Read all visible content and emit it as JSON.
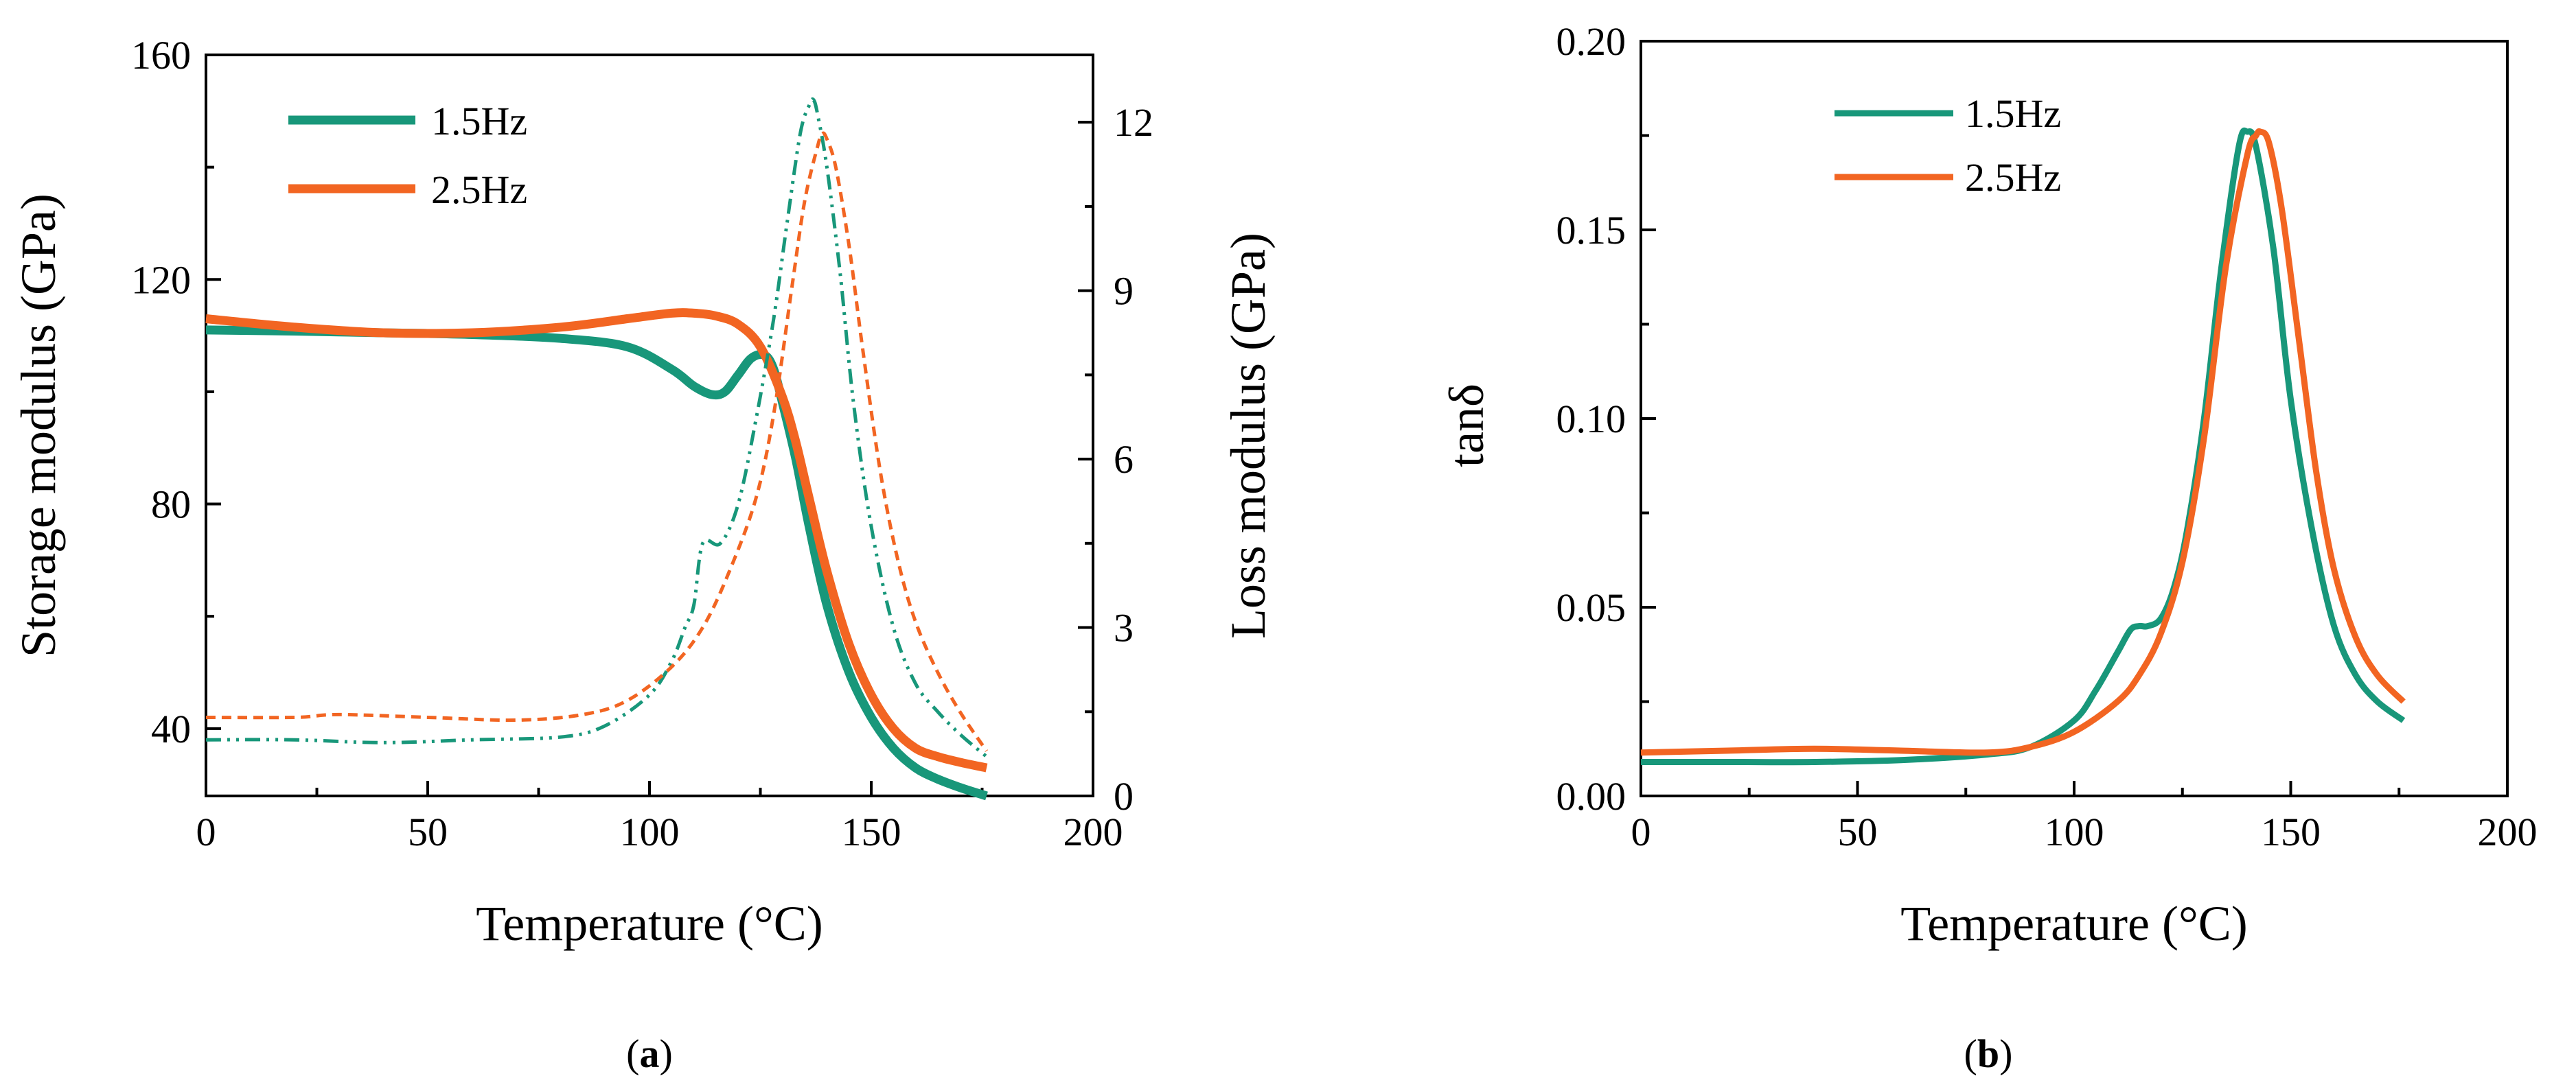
{
  "colors": {
    "green": "#18977A",
    "orange": "#F26522",
    "axis": "#000000"
  },
  "charts": [
    {
      "id": "a",
      "type": "line",
      "caption": {
        "open": "(",
        "label": "a",
        "close": ")"
      },
      "xlabel": "Temperature (°C)",
      "ylabel": "Storage modulus (GPa)",
      "y2label": "Loss modulus (GPa)",
      "xlim": [
        0,
        200
      ],
      "ylim": [
        28,
        160
      ],
      "y2lim": [
        0,
        13.2
      ],
      "xticks": [
        0,
        50,
        100,
        150,
        200
      ],
      "yticks": [
        40,
        80,
        120,
        160
      ],
      "y2ticks": [
        0,
        3,
        6,
        9,
        12
      ],
      "legend": [
        {
          "label": "1.5Hz",
          "color": "#18977A"
        },
        {
          "label": "2.5Hz",
          "color": "#F26522"
        }
      ],
      "series": [
        {
          "name": "1.5Hz storage",
          "color": "#18977A",
          "axis": "left",
          "style": "solid",
          "x": [
            0,
            20,
            40,
            60,
            80,
            95,
            105,
            110,
            114,
            117,
            120,
            123,
            126,
            128,
            130,
            133,
            136,
            140,
            145,
            150,
            155,
            160,
            165,
            170,
            176
          ],
          "y": [
            111,
            110.8,
            110.5,
            110.2,
            109.5,
            108,
            104,
            101,
            99.5,
            100,
            103,
            106,
            106.5,
            104,
            98,
            88,
            76,
            62,
            50,
            42,
            36.5,
            33,
            31,
            29.5,
            28
          ]
        },
        {
          "name": "2.5Hz storage",
          "color": "#F26522",
          "axis": "left",
          "style": "solid",
          "x": [
            0,
            20,
            40,
            60,
            80,
            95,
            105,
            110,
            115,
            120,
            125,
            130,
            133,
            136,
            140,
            145,
            150,
            155,
            160,
            165,
            170,
            176
          ],
          "y": [
            113,
            111.5,
            110.5,
            110.5,
            111.5,
            113,
            114,
            114,
            113.5,
            112,
            108,
            99,
            91,
            81,
            68,
            55,
            46,
            40,
            36.5,
            35,
            34,
            33
          ]
        },
        {
          "name": "1.5Hz loss",
          "color": "#18977A",
          "axis": "right",
          "style": "dashdotdot",
          "x": [
            0,
            20,
            40,
            60,
            80,
            90,
            100,
            105,
            108,
            110,
            112,
            116,
            120,
            124,
            128,
            131,
            134,
            136,
            137,
            138,
            140,
            143,
            146,
            150,
            155,
            160,
            165,
            170,
            176
          ],
          "y": [
            1,
            1,
            0.95,
            1,
            1.05,
            1.25,
            1.8,
            2.4,
            3.0,
            3.4,
            4.5,
            4.5,
            5.2,
            6.7,
            8.5,
            10.2,
            11.8,
            12.3,
            12.4,
            12.1,
            11.2,
            9.3,
            7.0,
            4.8,
            3.0,
            2.0,
            1.5,
            1.1,
            0.7
          ]
        },
        {
          "name": "2.5Hz loss",
          "color": "#F26522",
          "axis": "right",
          "style": "dashed",
          "x": [
            0,
            20,
            30,
            50,
            70,
            85,
            95,
            105,
            112,
            118,
            124,
            128,
            132,
            135,
            138,
            139,
            140,
            142,
            145,
            148,
            152,
            156,
            160,
            165,
            170,
            176
          ],
          "y": [
            1.4,
            1.4,
            1.45,
            1.4,
            1.35,
            1.45,
            1.7,
            2.3,
            3.0,
            4.0,
            5.3,
            6.8,
            9.0,
            10.6,
            11.6,
            11.8,
            11.7,
            11.2,
            9.8,
            8.0,
            5.8,
            4.2,
            3.1,
            2.2,
            1.5,
            0.8
          ]
        }
      ]
    },
    {
      "id": "b",
      "type": "line",
      "caption": {
        "open": "(",
        "label": "b",
        "close": ")"
      },
      "xlabel": "Temperature (°C)",
      "ylabel": "tanδ",
      "xlim": [
        0,
        200
      ],
      "ylim": [
        0,
        0.2
      ],
      "xticks": [
        0,
        50,
        100,
        150,
        200
      ],
      "yticks": [
        0.0,
        0.05,
        0.1,
        0.15,
        0.2
      ],
      "ytick_labels": [
        "0.00",
        "0.05",
        "0.10",
        "0.15",
        "0.20"
      ],
      "legend": [
        {
          "label": "1.5Hz",
          "color": "#18977A"
        },
        {
          "label": "2.5Hz",
          "color": "#F26522"
        }
      ],
      "series": [
        {
          "name": "1.5Hz",
          "color": "#18977A",
          "style": "solid",
          "x": [
            0,
            20,
            40,
            60,
            80,
            90,
            100,
            105,
            110,
            113,
            115,
            117,
            120,
            123,
            126,
            130,
            134,
            138,
            140,
            142,
            146,
            150,
            155,
            160,
            165,
            170,
            176
          ],
          "y": [
            0.009,
            0.009,
            0.009,
            0.0095,
            0.011,
            0.013,
            0.02,
            0.028,
            0.038,
            0.044,
            0.045,
            0.045,
            0.047,
            0.055,
            0.07,
            0.1,
            0.14,
            0.172,
            0.176,
            0.172,
            0.145,
            0.105,
            0.07,
            0.045,
            0.032,
            0.025,
            0.02
          ]
        },
        {
          "name": "2.5Hz",
          "color": "#F26522",
          "style": "solid",
          "x": [
            0,
            20,
            40,
            60,
            80,
            90,
            100,
            110,
            115,
            120,
            125,
            130,
            135,
            140,
            142,
            143,
            145,
            148,
            152,
            156,
            160,
            165,
            170,
            176
          ],
          "y": [
            0.0115,
            0.012,
            0.0125,
            0.012,
            0.0115,
            0.013,
            0.017,
            0.025,
            0.032,
            0.043,
            0.062,
            0.095,
            0.14,
            0.17,
            0.175,
            0.176,
            0.173,
            0.155,
            0.12,
            0.085,
            0.06,
            0.042,
            0.032,
            0.025
          ]
        }
      ]
    }
  ]
}
